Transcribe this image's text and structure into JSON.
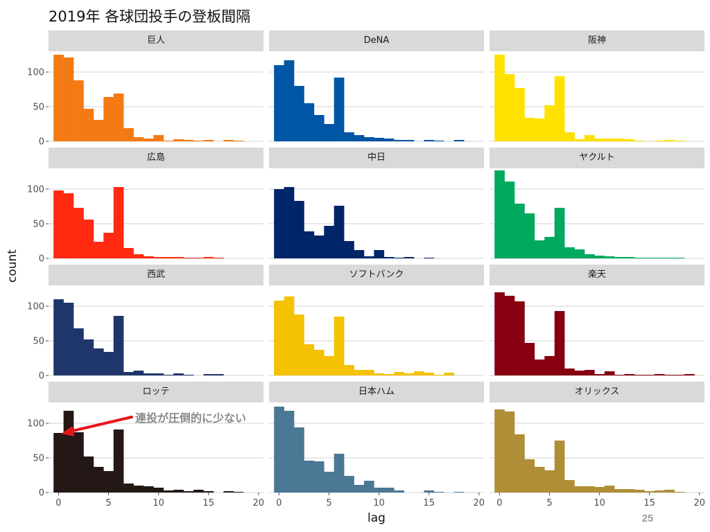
{
  "title": "2019年 各球団投手の登板間隔",
  "page_number": "25",
  "annotation": {
    "text": "連投が圧倒的に少ない",
    "color": "#e8141b"
  },
  "chart_data": {
    "type": "bar",
    "title": "2019年 各球団投手の登板間隔",
    "xlabel": "lag",
    "ylabel": "count",
    "xlim": [
      -1,
      20.5
    ],
    "ylim": [
      0,
      130
    ],
    "x_ticks": [
      0,
      5,
      10,
      15,
      20
    ],
    "y_ticks": [
      0,
      50,
      100
    ],
    "grid": true,
    "bin_width": 1,
    "panels": [
      {
        "name": "巨人",
        "color": "#f47a13",
        "x": [
          0,
          1,
          2,
          3,
          4,
          5,
          6,
          7,
          8,
          9,
          10,
          11,
          12,
          13,
          14,
          15,
          16,
          17,
          18
        ],
        "values": [
          125,
          121,
          88,
          47,
          31,
          64,
          69,
          19,
          6,
          4,
          9,
          1,
          3,
          2,
          1,
          2,
          0,
          2,
          1
        ]
      },
      {
        "name": "DeNA",
        "color": "#0055a5",
        "x": [
          0,
          1,
          2,
          3,
          4,
          5,
          6,
          7,
          8,
          9,
          10,
          11,
          12,
          13,
          14,
          15,
          16,
          17,
          18
        ],
        "values": [
          110,
          117,
          80,
          55,
          38,
          25,
          92,
          13,
          9,
          6,
          5,
          4,
          2,
          2,
          0,
          2,
          1,
          0,
          2
        ]
      },
      {
        "name": "阪神",
        "color": "#ffe100",
        "x": [
          0,
          1,
          2,
          3,
          4,
          5,
          6,
          7,
          8,
          9,
          10,
          11,
          12,
          13,
          14,
          15,
          16,
          17,
          18
        ],
        "values": [
          125,
          97,
          77,
          34,
          33,
          52,
          94,
          13,
          3,
          9,
          4,
          4,
          4,
          3,
          1,
          0,
          1,
          2,
          1
        ]
      },
      {
        "name": "広島",
        "color": "#ff2a10",
        "x": [
          0,
          1,
          2,
          3,
          4,
          5,
          6,
          7,
          8,
          9,
          10,
          11,
          12,
          13,
          14,
          15,
          16
        ],
        "values": [
          98,
          94,
          73,
          56,
          24,
          37,
          103,
          15,
          6,
          3,
          2,
          2,
          2,
          1,
          1,
          2,
          1
        ]
      },
      {
        "name": "中日",
        "color": "#002569",
        "x": [
          0,
          1,
          2,
          3,
          4,
          5,
          6,
          7,
          8,
          9,
          10,
          11,
          12,
          13,
          14,
          15
        ],
        "values": [
          100,
          103,
          83,
          39,
          33,
          47,
          76,
          25,
          12,
          3,
          12,
          2,
          1,
          2,
          0,
          1
        ]
      },
      {
        "name": "ヤクルト",
        "color": "#00a95e",
        "x": [
          0,
          1,
          2,
          3,
          4,
          5,
          6,
          7,
          8,
          9,
          10,
          11,
          12,
          13,
          14,
          15,
          16,
          17,
          18
        ],
        "values": [
          127,
          111,
          79,
          65,
          26,
          31,
          73,
          16,
          13,
          6,
          4,
          3,
          2,
          2,
          1,
          1,
          1,
          1,
          1
        ]
      },
      {
        "name": "西武",
        "color": "#1f366a",
        "x": [
          0,
          1,
          2,
          3,
          4,
          5,
          6,
          7,
          8,
          9,
          10,
          11,
          12,
          13,
          14,
          15,
          16
        ],
        "values": [
          110,
          105,
          68,
          52,
          39,
          34,
          86,
          5,
          7,
          3,
          3,
          1,
          3,
          1,
          0,
          2,
          2
        ]
      },
      {
        "name": "ソフトバンク",
        "color": "#f4c200",
        "x": [
          0,
          1,
          2,
          3,
          4,
          5,
          6,
          7,
          8,
          9,
          10,
          11,
          12,
          13,
          14,
          15,
          16,
          17
        ],
        "values": [
          108,
          114,
          88,
          45,
          37,
          28,
          85,
          15,
          8,
          8,
          3,
          2,
          5,
          3,
          6,
          4,
          1,
          4
        ]
      },
      {
        "name": "楽天",
        "color": "#860010",
        "x": [
          0,
          1,
          2,
          3,
          4,
          5,
          6,
          7,
          8,
          9,
          10,
          11,
          12,
          13,
          14,
          15,
          16,
          17,
          18,
          19
        ],
        "values": [
          120,
          115,
          107,
          47,
          23,
          28,
          93,
          10,
          7,
          8,
          2,
          6,
          1,
          2,
          1,
          1,
          2,
          1,
          1,
          2
        ]
      },
      {
        "name": "ロッテ",
        "color": "#231815",
        "x": [
          0,
          1,
          2,
          3,
          4,
          5,
          6,
          7,
          8,
          9,
          10,
          11,
          12,
          13,
          14,
          15,
          16,
          17,
          18
        ],
        "values": [
          86,
          118,
          87,
          52,
          37,
          31,
          91,
          13,
          10,
          9,
          7,
          3,
          4,
          2,
          4,
          2,
          0,
          2,
          1
        ]
      },
      {
        "name": "日本ハム",
        "color": "#4a7895",
        "x": [
          0,
          1,
          2,
          3,
          4,
          5,
          6,
          7,
          8,
          9,
          10,
          11,
          12,
          13,
          14,
          15,
          16,
          17,
          18
        ],
        "values": [
          124,
          118,
          94,
          46,
          45,
          30,
          56,
          24,
          11,
          17,
          7,
          7,
          3,
          0,
          0,
          3,
          1,
          0,
          1
        ]
      },
      {
        "name": "オリックス",
        "color": "#b08d37",
        "x": [
          0,
          1,
          2,
          3,
          4,
          5,
          6,
          7,
          8,
          9,
          10,
          11,
          12,
          13,
          14,
          15,
          16,
          17,
          18
        ],
        "values": [
          120,
          117,
          84,
          48,
          37,
          32,
          75,
          18,
          9,
          9,
          8,
          10,
          5,
          5,
          4,
          2,
          3,
          4,
          1
        ]
      }
    ]
  }
}
